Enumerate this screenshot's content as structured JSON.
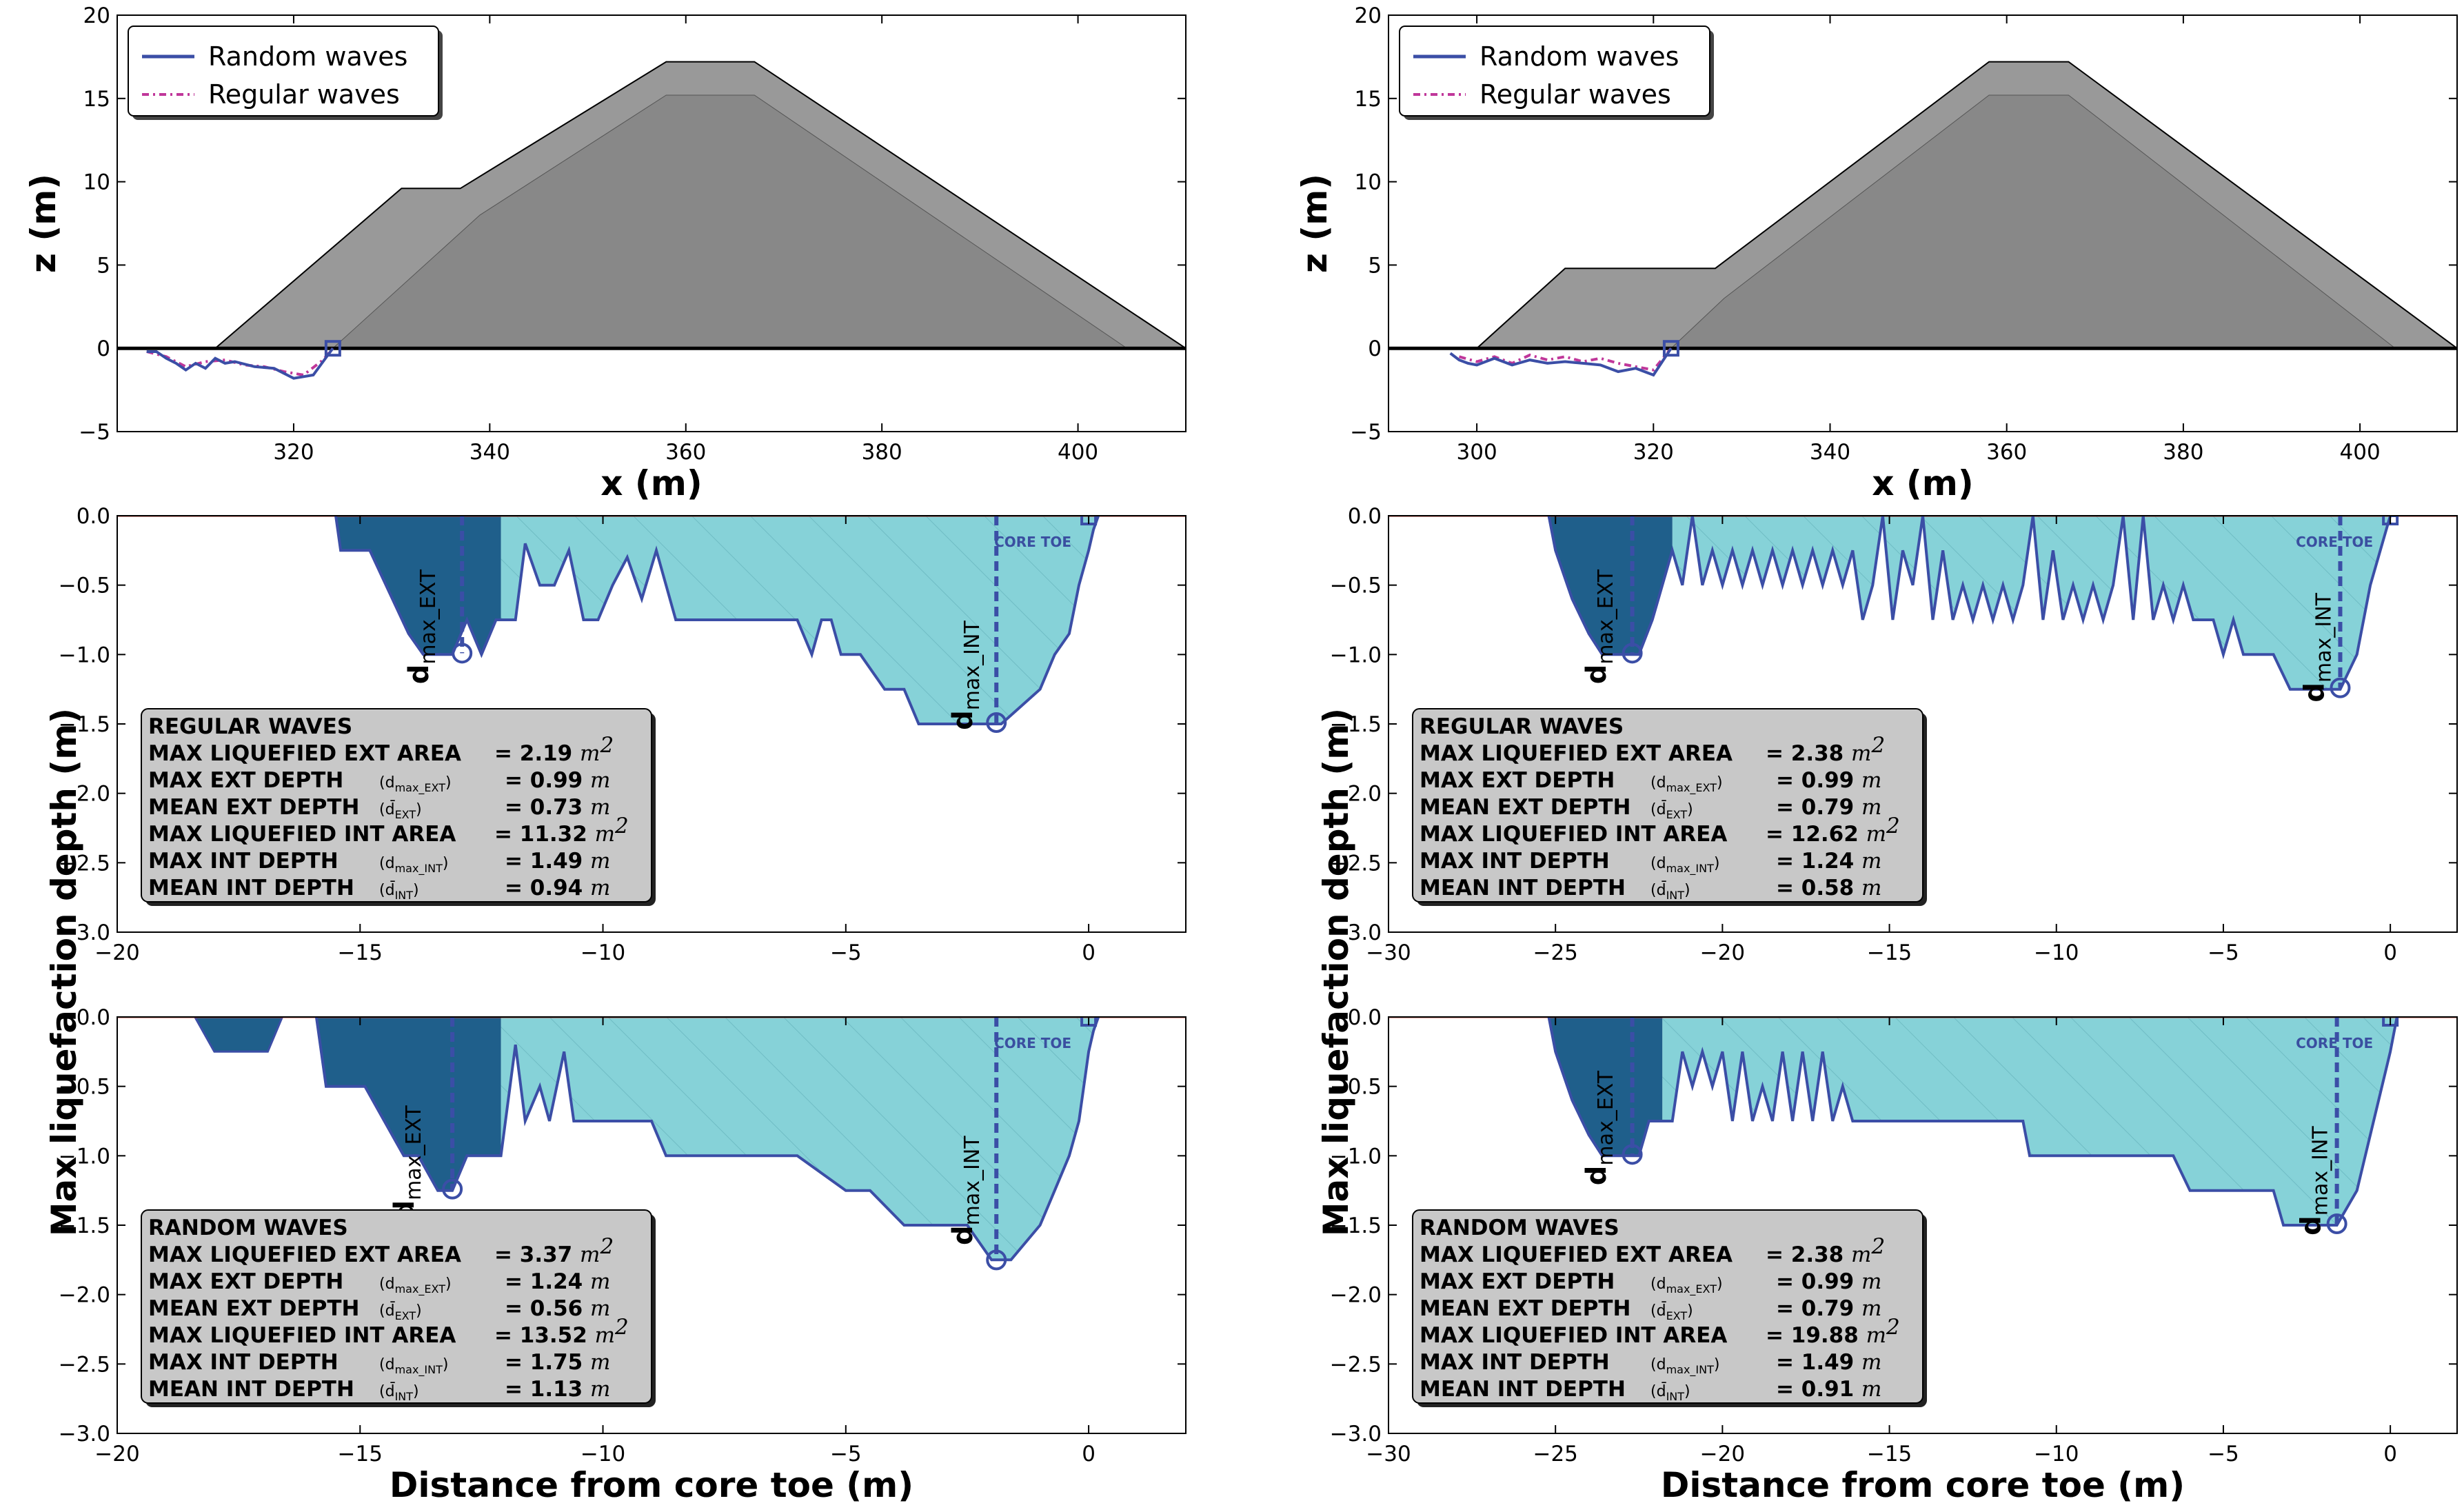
{
  "colors": {
    "random": "#3b4ea6",
    "regular": "#c0379a",
    "breakwater_outer": "#999999",
    "breakwater_inner": "#888888",
    "ext_fill": "#1f5f8b",
    "int_fill": "#86d2d8",
    "box_fill": "#c8c8c8"
  },
  "labels": {
    "z_axis": "z (m)",
    "x_axis": "x (m)",
    "y_depth": "Max liquefaction depth (m)",
    "x_dist": "Distance from core toe (m)",
    "legend_random": "Random waves",
    "legend_regular": "Regular waves",
    "core_toe": "CORE TOE",
    "d_ext": "d",
    "d_ext_sub": "max_EXT",
    "d_int": "d",
    "d_int_sub": "max_INT"
  },
  "box_labels": {
    "l1": "MAX LIQUEFIED EXT AREA",
    "l2": "MAX EXT DEPTH",
    "l2s": "(d",
    "l2sub": "max_EXT",
    "l3": "MEAN EXT DEPTH",
    "l3s": "(d̄",
    "l3sub": "EXT",
    "l4": "MAX LIQUEFIED INT AREA",
    "l5": "MAX INT DEPTH",
    "l5s": "(d",
    "l5sub": "max_INT",
    "l6": "MEAN INT DEPTH",
    "l6s": "(d̄",
    "l6sub": "INT",
    "m2": "m",
    "m": "m"
  },
  "chart_data": [
    {
      "id": "profile_left",
      "type": "area",
      "xlabel": "x (m)",
      "ylabel": "z (m)",
      "xlim": [
        302,
        411
      ],
      "ylim": [
        -5,
        20
      ],
      "xticks": [
        "320",
        "340",
        "360",
        "380",
        "400"
      ],
      "yticks": [
        "−5",
        "0",
        "5",
        "10",
        "15",
        "20"
      ],
      "legend": [
        "Random waves",
        "Regular waves"
      ],
      "outer_x": [
        312,
        331,
        337,
        358,
        367,
        411
      ],
      "outer_z": [
        0,
        9.6,
        9.6,
        17.2,
        17.2,
        0
      ],
      "inner_x": [
        324,
        339,
        358,
        367,
        405
      ],
      "inner_z": [
        0,
        8,
        15.2,
        15.2,
        0
      ],
      "random_x": [
        305,
        306,
        307,
        308,
        309,
        310,
        311,
        312,
        313,
        314,
        316,
        318,
        320,
        322,
        323,
        324
      ],
      "random_z": [
        -0.2,
        -0.2,
        -0.6,
        -0.9,
        -1.3,
        -0.9,
        -1.2,
        -0.6,
        -0.9,
        -0.8,
        -1.1,
        -1.2,
        -1.8,
        -1.6,
        -0.8,
        0
      ],
      "regular_x": [
        305,
        307,
        309,
        311,
        313,
        315,
        317,
        319,
        321,
        323,
        324
      ],
      "regular_z": [
        -0.2,
        -0.5,
        -1.1,
        -0.8,
        -0.7,
        -1.0,
        -1.1,
        -1.4,
        -1.6,
        -0.7,
        0
      ]
    },
    {
      "id": "profile_right",
      "type": "area",
      "xlabel": "x (m)",
      "ylabel": "z (m)",
      "xlim": [
        290,
        411
      ],
      "ylim": [
        -5,
        20
      ],
      "xticks": [
        "300",
        "320",
        "340",
        "360",
        "380",
        "400"
      ],
      "yticks": [
        "−5",
        "0",
        "5",
        "10",
        "15",
        "20"
      ],
      "legend": [
        "Random waves",
        "Regular waves"
      ],
      "outer_x": [
        300,
        310,
        327,
        358,
        367,
        411
      ],
      "outer_z": [
        0,
        4.8,
        4.8,
        17.2,
        17.2,
        0
      ],
      "inner_x": [
        322,
        328,
        358,
        367,
        404
      ],
      "inner_z": [
        0,
        3,
        15.2,
        15.2,
        0
      ],
      "random_x": [
        297,
        298,
        299,
        300,
        302,
        304,
        306,
        308,
        310,
        312,
        314,
        316,
        318,
        320,
        321,
        322
      ],
      "random_z": [
        -0.3,
        -0.7,
        -0.9,
        -1.0,
        -0.6,
        -1.0,
        -0.7,
        -0.9,
        -0.8,
        -0.9,
        -1.0,
        -1.4,
        -1.2,
        -1.6,
        -0.8,
        0
      ],
      "regular_x": [
        298,
        300,
        302,
        304,
        306,
        308,
        310,
        312,
        314,
        316,
        318,
        320,
        322
      ],
      "regular_z": [
        -0.5,
        -0.8,
        -0.5,
        -0.9,
        -0.4,
        -0.7,
        -0.5,
        -0.8,
        -0.6,
        -0.9,
        -1.1,
        -1.3,
        0
      ]
    },
    {
      "id": "depth_left_regular",
      "type": "area",
      "xlabel": "",
      "ylabel": "Max liquefaction depth (m)",
      "xlim": [
        -20,
        2
      ],
      "ylim": [
        -3,
        0
      ],
      "xticks": [
        "−20",
        "−15",
        "−10",
        "−5",
        "0"
      ],
      "yticks": [
        "−3.0",
        "−2.5",
        "−2.0",
        "−1.5",
        "−1.0",
        "−0.5",
        "0.0"
      ],
      "ext_split": -12.1,
      "profile_x": [
        -15.5,
        -15.4,
        -14.8,
        -14.4,
        -14.0,
        -13.7,
        -13.1,
        -12.8,
        -12.5,
        -12.2,
        -12.1,
        -11.8,
        -11.6,
        -11.3,
        -11.0,
        -10.7,
        -10.4,
        -10.1,
        -9.8,
        -9.5,
        -9.2,
        -8.9,
        -8.5,
        -8.0,
        -7.0,
        -6.5,
        -6.0,
        -5.7,
        -5.5,
        -5.3,
        -5.1,
        -4.9,
        -4.7,
        -4.2,
        -3.8,
        -3.5,
        -3.0,
        -2.5,
        -1.8,
        -1.0,
        -0.7,
        -0.4,
        -0.2,
        0.0,
        0.1,
        0.2
      ],
      "profile_y": [
        0,
        -0.25,
        -0.25,
        -0.55,
        -0.85,
        -1.0,
        -1.0,
        -0.75,
        -1.0,
        -0.75,
        -0.75,
        -0.75,
        -0.2,
        -0.5,
        -0.5,
        -0.25,
        -0.75,
        -0.75,
        -0.5,
        -0.3,
        -0.6,
        -0.25,
        -0.75,
        -0.75,
        -0.75,
        -0.75,
        -0.75,
        -1.0,
        -0.75,
        -0.75,
        -1.0,
        -1.0,
        -1.0,
        -1.25,
        -1.25,
        -1.5,
        -1.5,
        -1.5,
        -1.5,
        -1.25,
        -1.0,
        -0.85,
        -0.5,
        -0.25,
        -0.1,
        0
      ],
      "ext_marker": {
        "x": -12.9,
        "y": -0.99
      },
      "int_marker": {
        "x": -1.9,
        "y": -1.49
      },
      "ext_label": {
        "x": -13.6,
        "y": -0.8
      },
      "int_label": {
        "x": -2.4,
        "y": -1.15
      },
      "stats": {
        "title": "REGULAR WAVES",
        "ext_area": "= 2.19",
        "max_ext": "= 0.99",
        "mean_ext": "= 0.73",
        "int_area": "= 11.32",
        "max_int": "= 1.49",
        "mean_int": "= 0.94"
      }
    },
    {
      "id": "depth_left_random",
      "type": "area",
      "xlabel": "Distance from core toe (m)",
      "ylabel": "",
      "xlim": [
        -20,
        2
      ],
      "ylim": [
        -3,
        0
      ],
      "xticks": [
        "−20",
        "−15",
        "−10",
        "−5",
        "0"
      ],
      "yticks": [
        "−3.0",
        "−2.5",
        "−2.0",
        "−1.5",
        "−1.0",
        "−0.5",
        "0.0"
      ],
      "ext_split": -12.1,
      "ext_extra_x": [
        -18.4,
        -18.0,
        -16.9,
        -16.6
      ],
      "ext_extra_y": [
        0,
        -0.25,
        -0.25,
        0
      ],
      "profile_x": [
        -15.9,
        -15.7,
        -14.9,
        -14.5,
        -14.1,
        -13.8,
        -13.4,
        -13.1,
        -12.8,
        -12.5,
        -12.1,
        -11.8,
        -11.6,
        -11.3,
        -11.1,
        -10.8,
        -10.6,
        -10.3,
        -10.0,
        -9.0,
        -8.7,
        -8.0,
        -7.0,
        -6.0,
        -5.0,
        -4.5,
        -3.8,
        -3.0,
        -2.5,
        -2.0,
        -1.6,
        -1.0,
        -0.7,
        -0.4,
        -0.2,
        0.0,
        0.1,
        0.2
      ],
      "profile_y": [
        0,
        -0.5,
        -0.5,
        -0.75,
        -1.0,
        -1.0,
        -1.25,
        -1.25,
        -1.0,
        -1.0,
        -1.0,
        -0.2,
        -0.75,
        -0.5,
        -0.75,
        -0.25,
        -0.75,
        -0.75,
        -0.75,
        -0.75,
        -1.0,
        -1.0,
        -1.0,
        -1.0,
        -1.25,
        -1.25,
        -1.5,
        -1.5,
        -1.5,
        -1.75,
        -1.75,
        -1.5,
        -1.25,
        -1.0,
        -0.75,
        -0.25,
        -0.1,
        0
      ],
      "ext_marker": {
        "x": -13.1,
        "y": -1.24
      },
      "int_marker": {
        "x": -1.9,
        "y": -1.75
      },
      "ext_label": {
        "x": -13.9,
        "y": -1.05
      },
      "int_label": {
        "x": -2.4,
        "y": -1.25
      },
      "stats": {
        "title": "RANDOM WAVES",
        "ext_area": "= 3.37",
        "max_ext": "= 1.24",
        "mean_ext": "= 0.56",
        "int_area": "= 13.52",
        "max_int": "= 1.75",
        "mean_int": "= 1.13"
      }
    },
    {
      "id": "depth_right_regular",
      "type": "area",
      "xlabel": "",
      "ylabel": "",
      "xlim": [
        -30,
        2
      ],
      "ylim": [
        -3,
        0
      ],
      "xticks": [
        "−30",
        "−25",
        "−20",
        "−15",
        "−10",
        "−5",
        "0"
      ],
      "yticks": [
        "−3.0",
        "−2.5",
        "−2.0",
        "−1.5",
        "−1.0",
        "−0.5",
        "0.0"
      ],
      "ext_split": -21.5,
      "profile_x": [
        -25.2,
        -25.0,
        -24.5,
        -24.0,
        -23.6,
        -23.0,
        -22.5,
        -22.1,
        -21.8,
        -21.5,
        -21.2,
        -20.9,
        -20.6,
        -20.3,
        -20.0,
        -19.7,
        -19.4,
        -19.1,
        -18.8,
        -18.5,
        -18.2,
        -17.9,
        -17.6,
        -17.3,
        -17.0,
        -16.7,
        -16.4,
        -16.1,
        -15.8,
        -15.5,
        -15.2,
        -14.9,
        -14.6,
        -14.3,
        -14.0,
        -13.7,
        -13.4,
        -13.1,
        -12.8,
        -12.5,
        -12.2,
        -11.9,
        -11.6,
        -11.3,
        -11.0,
        -10.7,
        -10.4,
        -10.1,
        -9.8,
        -9.5,
        -9.2,
        -8.9,
        -8.6,
        -8.3,
        -8.0,
        -7.7,
        -7.4,
        -7.1,
        -6.8,
        -6.5,
        -6.2,
        -5.9,
        -5.6,
        -5.3,
        -5.0,
        -4.7,
        -4.4,
        -4.1,
        -3.8,
        -3.5,
        -3.0,
        -2.5,
        -1.5,
        -1.0,
        -0.6,
        -0.3,
        0.0,
        0.2
      ],
      "profile_y": [
        0,
        -0.25,
        -0.6,
        -0.85,
        -1.0,
        -1.0,
        -1.0,
        -0.75,
        -0.5,
        -0.25,
        -0.5,
        0,
        -0.5,
        -0.25,
        -0.5,
        -0.25,
        -0.5,
        -0.25,
        -0.5,
        -0.25,
        -0.5,
        -0.25,
        -0.5,
        -0.25,
        -0.5,
        -0.25,
        -0.5,
        -0.25,
        -0.75,
        -0.5,
        0,
        -0.75,
        -0.25,
        -0.5,
        0,
        -0.75,
        -0.25,
        -0.75,
        -0.5,
        -0.75,
        -0.5,
        -0.75,
        -0.5,
        -0.75,
        -0.5,
        0,
        -0.75,
        -0.25,
        -0.75,
        -0.5,
        -0.75,
        -0.5,
        -0.75,
        -0.5,
        0,
        -0.75,
        0,
        -0.75,
        -0.5,
        -0.75,
        -0.5,
        -0.75,
        -0.75,
        -0.75,
        -1.0,
        -0.75,
        -1.0,
        -1.0,
        -1.0,
        -1.0,
        -1.25,
        -1.25,
        -1.25,
        -1.0,
        -0.5,
        -0.25,
        0,
        0
      ],
      "ext_marker": {
        "x": -22.7,
        "y": -0.99
      },
      "int_marker": {
        "x": -1.5,
        "y": -1.24
      },
      "ext_label": {
        "x": -23.5,
        "y": -0.8
      },
      "int_label": {
        "x": -2.0,
        "y": -0.95
      },
      "stats": {
        "title": "REGULAR WAVES",
        "ext_area": "= 2.38",
        "max_ext": "= 0.99",
        "mean_ext": "= 0.79",
        "int_area": "= 12.62",
        "max_int": "= 1.24",
        "mean_int": "= 0.58"
      }
    },
    {
      "id": "depth_right_random",
      "type": "area",
      "xlabel": "Distance from core toe (m)",
      "ylabel": "",
      "xlim": [
        -30,
        2
      ],
      "ylim": [
        -3,
        0
      ],
      "xticks": [
        "−30",
        "−25",
        "−20",
        "−15",
        "−10",
        "−5",
        "0"
      ],
      "yticks": [
        "−3.0",
        "−2.5",
        "−2.0",
        "−1.5",
        "−1.0",
        "−0.5",
        "0.0"
      ],
      "ext_split": -21.8,
      "profile_x": [
        -25.2,
        -25.0,
        -24.5,
        -24.0,
        -23.6,
        -23.0,
        -22.5,
        -22.2,
        -21.8,
        -21.5,
        -21.2,
        -20.9,
        -20.6,
        -20.3,
        -20.0,
        -19.7,
        -19.4,
        -19.1,
        -18.8,
        -18.5,
        -18.2,
        -17.9,
        -17.6,
        -17.3,
        -17.0,
        -16.7,
        -16.4,
        -16.1,
        -15.0,
        -14.0,
        -13.0,
        -12.0,
        -11.0,
        -10.8,
        -10.5,
        -10.2,
        -9.5,
        -8.5,
        -7.5,
        -6.5,
        -6.0,
        -5.5,
        -4.5,
        -3.5,
        -3.2,
        -2.5,
        -2.0,
        -1.6,
        -1.0,
        -0.5,
        0.0,
        0.2
      ],
      "profile_y": [
        0,
        -0.25,
        -0.6,
        -0.85,
        -1.0,
        -1.0,
        -1.0,
        -0.75,
        -0.75,
        -0.75,
        -0.25,
        -0.5,
        -0.25,
        -0.5,
        -0.25,
        -0.75,
        -0.25,
        -0.75,
        -0.5,
        -0.75,
        -0.25,
        -0.75,
        -0.25,
        -0.75,
        -0.25,
        -0.75,
        -0.5,
        -0.75,
        -0.75,
        -0.75,
        -0.75,
        -0.75,
        -0.75,
        -1.0,
        -1.0,
        -1.0,
        -1.0,
        -1.0,
        -1.0,
        -1.0,
        -1.25,
        -1.25,
        -1.25,
        -1.25,
        -1.5,
        -1.5,
        -1.5,
        -1.5,
        -1.25,
        -0.75,
        -0.25,
        0
      ],
      "ext_marker": {
        "x": -22.7,
        "y": -0.99
      },
      "int_marker": {
        "x": -1.6,
        "y": -1.49
      },
      "ext_label": {
        "x": -23.5,
        "y": -0.8
      },
      "int_label": {
        "x": -2.1,
        "y": -1.18
      },
      "stats": {
        "title": "RANDOM WAVES",
        "ext_area": "= 2.38",
        "max_ext": "= 0.99",
        "mean_ext": "= 0.79",
        "int_area": "= 19.88",
        "max_int": "= 1.49",
        "mean_int": "= 0.91"
      }
    }
  ]
}
